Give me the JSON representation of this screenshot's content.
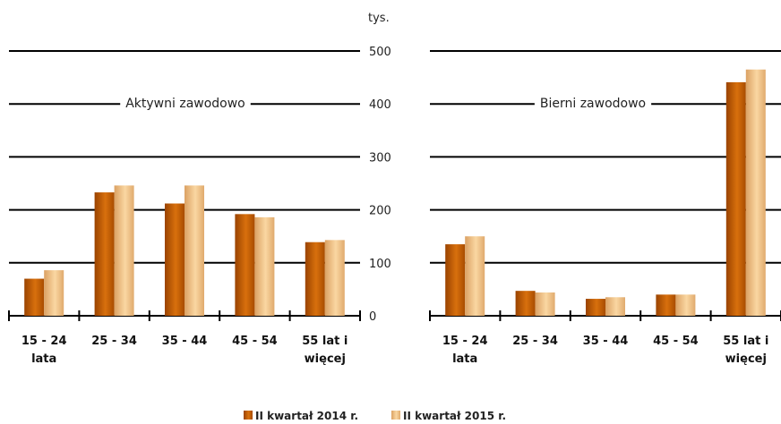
{
  "chart_data": {
    "type": "bar",
    "unit_label": "tys.",
    "ylim": [
      0,
      500
    ],
    "yticks": [
      0,
      100,
      200,
      300,
      400,
      500
    ],
    "grid": true,
    "legend_position": "bottom",
    "categories": [
      [
        "15 - 24",
        "lata"
      ],
      [
        "25 - 34"
      ],
      [
        "35 - 44"
      ],
      [
        "45 - 54"
      ],
      [
        "55 lat i",
        "więcej"
      ]
    ],
    "series": [
      {
        "name": "II kwartał 2014 r.",
        "color": "#c85e00"
      },
      {
        "name": "II kwartał 2015 r.",
        "color": "#f2c184"
      }
    ],
    "panels": [
      {
        "label": "Aktywni zawodowo",
        "values": [
          [
            70,
            86
          ],
          [
            233,
            246
          ],
          [
            212,
            246
          ],
          [
            192,
            186
          ],
          [
            139,
            143
          ]
        ]
      },
      {
        "label": "Bierni zawodowo",
        "values": [
          [
            135,
            150
          ],
          [
            47,
            44
          ],
          [
            32,
            35
          ],
          [
            40,
            40
          ],
          [
            441,
            465
          ]
        ]
      }
    ]
  }
}
